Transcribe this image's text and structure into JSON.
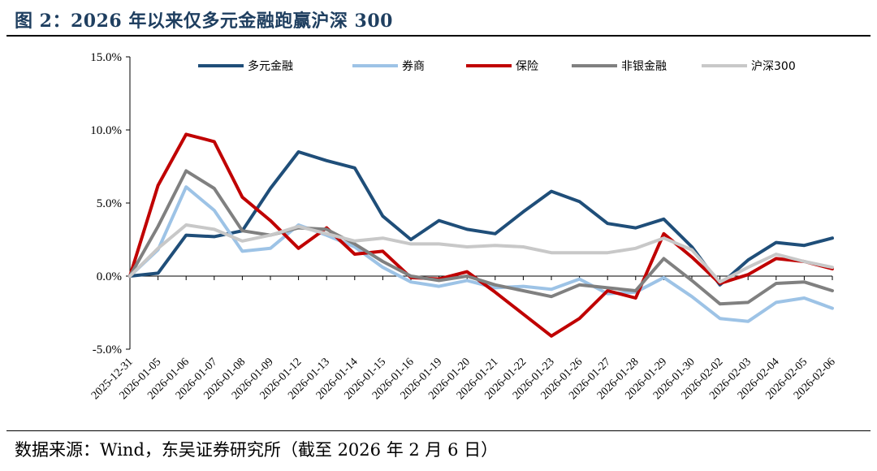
{
  "header": {
    "title": "图 2：2026 年以来仅多元金融跑赢沪深 300"
  },
  "footer": {
    "source": "数据来源：Wind，东吴证券研究所（截至 2026 年 2 月 6 日）"
  },
  "chart_data": {
    "type": "line",
    "title": "图 2：2026 年以来仅多元金融跑赢沪深 300",
    "xlabel": "",
    "ylabel": "",
    "ylim": [
      -5.0,
      15.0
    ],
    "y_ticks": [
      -5.0,
      0.0,
      5.0,
      10.0,
      15.0
    ],
    "y_tick_labels": [
      "-5.0%",
      "0.0%",
      "5.0%",
      "10.0%",
      "15.0%"
    ],
    "legend_position": "top",
    "grid": false,
    "x": [
      "2025-12-31",
      "2026-01-05",
      "2026-01-06",
      "2026-01-07",
      "2026-01-08",
      "2026-01-09",
      "2026-01-12",
      "2026-01-13",
      "2026-01-14",
      "2026-01-15",
      "2026-01-16",
      "2026-01-19",
      "2026-01-20",
      "2026-01-21",
      "2026-01-22",
      "2026-01-23",
      "2026-01-26",
      "2026-01-27",
      "2026-01-28",
      "2026-01-29",
      "2026-01-30",
      "2026-02-02",
      "2026-02-03",
      "2026-02-04",
      "2026-02-05",
      "2026-02-06"
    ],
    "series": [
      {
        "name": "多元金融",
        "color": "#1f4e79",
        "values": [
          0.0,
          0.2,
          2.8,
          2.7,
          3.1,
          6.0,
          8.5,
          7.9,
          7.4,
          4.1,
          2.5,
          3.8,
          3.2,
          2.9,
          4.4,
          5.8,
          5.1,
          3.6,
          3.3,
          3.9,
          2.0,
          -0.6,
          1.1,
          2.3,
          2.1,
          2.6
        ]
      },
      {
        "name": "券商",
        "color": "#9dc3e6",
        "values": [
          0.0,
          1.8,
          6.1,
          4.5,
          1.7,
          1.9,
          3.5,
          2.8,
          2.0,
          0.6,
          -0.4,
          -0.7,
          -0.3,
          -0.8,
          -0.7,
          -0.9,
          -0.2,
          -1.2,
          -1.1,
          -0.1,
          -1.4,
          -2.9,
          -3.1,
          -1.8,
          -1.5,
          -2.2
        ]
      },
      {
        "name": "保险",
        "color": "#c00000",
        "values": [
          0.0,
          6.2,
          9.7,
          9.2,
          5.4,
          3.8,
          1.9,
          3.3,
          1.5,
          1.7,
          -0.1,
          -0.2,
          0.3,
          -1.1,
          -2.6,
          -4.1,
          -2.9,
          -1.0,
          -1.5,
          2.9,
          1.3,
          -0.5,
          0.1,
          1.2,
          1.0,
          0.5
        ]
      },
      {
        "name": "非银金融",
        "color": "#808080",
        "values": [
          0.0,
          3.4,
          7.2,
          6.0,
          3.1,
          2.8,
          3.3,
          3.2,
          2.2,
          1.0,
          0.0,
          -0.3,
          0.0,
          -0.6,
          -1.0,
          -1.4,
          -0.6,
          -0.8,
          -1.0,
          1.2,
          -0.3,
          -1.9,
          -1.8,
          -0.5,
          -0.4,
          -1.0
        ]
      },
      {
        "name": "沪深300",
        "color": "#c8c8c8",
        "values": [
          0.0,
          1.9,
          3.5,
          3.2,
          2.4,
          2.8,
          3.4,
          2.9,
          2.4,
          2.6,
          2.2,
          2.2,
          2.0,
          2.1,
          2.0,
          1.6,
          1.6,
          1.6,
          1.9,
          2.6,
          1.8,
          -0.4,
          0.6,
          1.5,
          1.0,
          0.6
        ]
      }
    ]
  }
}
